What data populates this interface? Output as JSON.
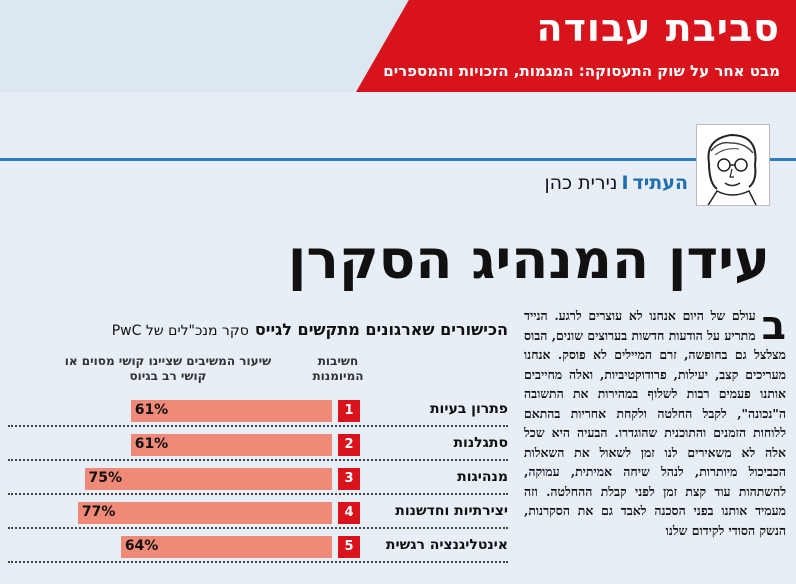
{
  "header": {
    "section_title": "סביבת עבודה",
    "section_subtitle": "מבט אחר על שוק התעסוקה: המגמות, הזכויות והמספרים"
  },
  "byline": {
    "kicker": "העתיד",
    "separator": "I",
    "author": "נירית כהן"
  },
  "headline": "עידן המנהיג הסקרן",
  "body": {
    "dropcap": "ב",
    "text": "עולם של היום אנחנו לא עוצרים לרגע. הנייד מתריע על הודעות חדשות בערוצים שונים, הבוס מצלצל גם בחופשה, זרם המיילים לא פוסק. אנחנו מעריכים קצב, יעילות, פרודוקטיביות, ואלה מחייבים אותנו פעמים רבות לשלוף במהירות את התשובה ה\"נכונה\", לקבל החלטה ולקחת אחריות בהתאם ללוחות הזמנים והתוכנית שהוגדרו. הבעיה היא שכל אלה לא משאירים לנו זמן לשאול את השאלות הכביכול מיותרות, לנהל שיחה אמיתית, עמוקה, להשתהות עוד קצת זמן לפני קבלת ההחלטה. וזה מעמיד אותנו בפני הסכנה לאבד גם את הסקרנות, הנשק הסודי לקידום שלנו"
  },
  "chart_data": {
    "type": "bar",
    "title": "הכישורים שארגונים מתקשים לגייס",
    "subtitle": "סקר מנכ\"לים של PwC",
    "col_rank_header": "חשיבות המיומנות",
    "col_pct_header": "שיעור המשיבים שציינו קושי מסוים או קושי רב בגיוס",
    "categories": [
      "פתרון בעיות",
      "סתגלנות",
      "מנהיגות",
      "יצירתיות וחדשנות",
      "אינטליגנציה רגשית"
    ],
    "ranks": [
      "1",
      "2",
      "3",
      "4",
      "5"
    ],
    "values": [
      61,
      61,
      75,
      77,
      64
    ],
    "value_labels": [
      "61%",
      "61%",
      "75%",
      "77%",
      "64%"
    ],
    "ylim": [
      0,
      100
    ],
    "colors": {
      "bar": "#f08a78",
      "rank_box": "#d8131c"
    }
  }
}
